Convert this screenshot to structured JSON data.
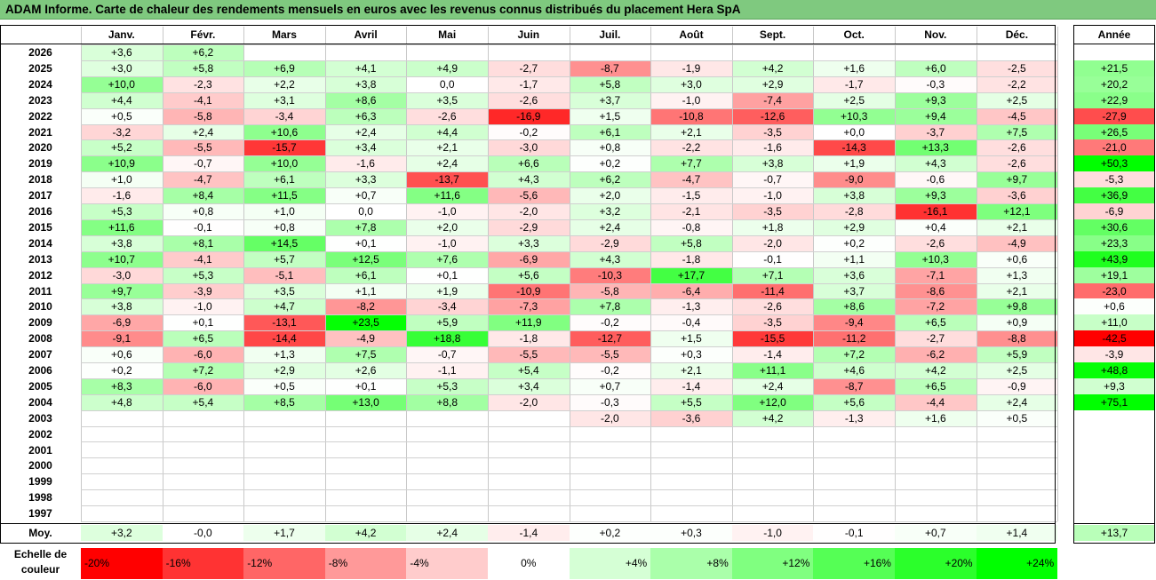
{
  "title": "ADAM Informe. Carte de chaleur des rendements mensuels en euros avec les revenus connus distribués du placement Hera SpA",
  "chart_data": {
    "type": "heatmap",
    "columns": [
      "Janv.",
      "Févr.",
      "Mars",
      "Avril",
      "Mai",
      "Juin",
      "Juil.",
      "Août",
      "Sept.",
      "Oct.",
      "Nov.",
      "Déc."
    ],
    "year_header": "Année",
    "rows": [
      {
        "year": "2026",
        "months": [
          "+3,6",
          "+6,2",
          "",
          "",
          "",
          "",
          "",
          "",
          "",
          "",
          "",
          ""
        ],
        "annual": ""
      },
      {
        "year": "2025",
        "months": [
          "+3,0",
          "+5,8",
          "+6,9",
          "+4,1",
          "+4,9",
          "-2,7",
          "-8,7",
          "-1,9",
          "+4,2",
          "+1,6",
          "+6,0",
          "-2,5"
        ],
        "annual": "+21,5"
      },
      {
        "year": "2024",
        "months": [
          "+10,0",
          "-2,3",
          "+2,2",
          "+3,8",
          "0,0",
          "-1,7",
          "+5,8",
          "+3,0",
          "+2,9",
          "-1,7",
          "-0,3",
          "-2,2"
        ],
        "annual": "+20,2"
      },
      {
        "year": "2023",
        "months": [
          "+4,4",
          "-4,1",
          "+3,1",
          "+8,6",
          "+3,5",
          "-2,6",
          "+3,7",
          "-1,0",
          "-7,4",
          "+2,5",
          "+9,3",
          "+2,5"
        ],
        "annual": "+22,9"
      },
      {
        "year": "2022",
        "months": [
          "+0,5",
          "-5,8",
          "-3,4",
          "+6,3",
          "-2,6",
          "-16,9",
          "+1,5",
          "-10,8",
          "-12,6",
          "+10,3",
          "+9,4",
          "-4,5"
        ],
        "annual": "-27,9"
      },
      {
        "year": "2021",
        "months": [
          "-3,2",
          "+2,4",
          "+10,6",
          "+2,4",
          "+4,4",
          "-0,2",
          "+6,1",
          "+2,1",
          "-3,5",
          "+0,0",
          "-3,7",
          "+7,5"
        ],
        "annual": "+26,5"
      },
      {
        "year": "2020",
        "months": [
          "+5,2",
          "-5,5",
          "-15,7",
          "+3,4",
          "+2,1",
          "-3,0",
          "+0,8",
          "-2,2",
          "-1,6",
          "-14,3",
          "+13,3",
          "-2,6"
        ],
        "annual": "-21,0"
      },
      {
        "year": "2019",
        "months": [
          "+10,9",
          "-0,7",
          "+10,0",
          "-1,6",
          "+2,4",
          "+6,6",
          "+0,2",
          "+7,7",
          "+3,8",
          "+1,9",
          "+4,3",
          "-2,6"
        ],
        "annual": "+50,3"
      },
      {
        "year": "2018",
        "months": [
          "+1,0",
          "-4,7",
          "+6,1",
          "+3,3",
          "-13,7",
          "+4,3",
          "+6,2",
          "-4,7",
          "-0,7",
          "-9,0",
          "-0,6",
          "+9,7"
        ],
        "annual": "-5,3"
      },
      {
        "year": "2017",
        "months": [
          "-1,6",
          "+8,4",
          "+11,5",
          "+0,7",
          "+11,6",
          "-5,6",
          "+2,0",
          "-1,5",
          "-1,0",
          "+3,8",
          "+9,3",
          "-3,6"
        ],
        "annual": "+36,9"
      },
      {
        "year": "2016",
        "months": [
          "+5,3",
          "+0,8",
          "+1,0",
          "0,0",
          "-1,0",
          "-2,0",
          "+3,2",
          "-2,1",
          "-3,5",
          "-2,8",
          "-16,1",
          "+12,1"
        ],
        "annual": "-6,9"
      },
      {
        "year": "2015",
        "months": [
          "+11,6",
          "-0,1",
          "+0,8",
          "+7,8",
          "+2,0",
          "-2,9",
          "+2,4",
          "-0,8",
          "+1,8",
          "+2,9",
          "+0,4",
          "+2,1"
        ],
        "annual": "+30,6"
      },
      {
        "year": "2014",
        "months": [
          "+3,8",
          "+8,1",
          "+14,5",
          "+0,1",
          "-1,0",
          "+3,3",
          "-2,9",
          "+5,8",
          "-2,0",
          "+0,2",
          "-2,6",
          "-4,9"
        ],
        "annual": "+23,3"
      },
      {
        "year": "2013",
        "months": [
          "+10,7",
          "-4,1",
          "+5,7",
          "+12,5",
          "+7,6",
          "-6,9",
          "+4,3",
          "-1,8",
          "-0,1",
          "+1,1",
          "+10,3",
          "+0,6"
        ],
        "annual": "+43,9"
      },
      {
        "year": "2012",
        "months": [
          "-3,0",
          "+5,3",
          "-5,1",
          "+6,1",
          "+0,1",
          "+5,6",
          "-10,3",
          "+17,7",
          "+7,1",
          "+3,6",
          "-7,1",
          "+1,3"
        ],
        "annual": "+19,1"
      },
      {
        "year": "2011",
        "months": [
          "+9,7",
          "-3,9",
          "+3,5",
          "+1,1",
          "+1,9",
          "-10,9",
          "-5,8",
          "-6,4",
          "-11,4",
          "+3,7",
          "-8,6",
          "+2,1"
        ],
        "annual": "-23,0"
      },
      {
        "year": "2010",
        "months": [
          "+3,8",
          "-1,0",
          "+4,7",
          "-8,2",
          "-3,4",
          "-7,3",
          "+7,8",
          "-1,3",
          "-2,6",
          "+8,6",
          "-7,2",
          "+9,8"
        ],
        "annual": "+0,6"
      },
      {
        "year": "2009",
        "months": [
          "-6,9",
          "+0,1",
          "-13,1",
          "+23,5",
          "+5,9",
          "+11,9",
          "-0,2",
          "-0,4",
          "-3,5",
          "-9,4",
          "+6,5",
          "+0,9"
        ],
        "annual": "+11,0"
      },
      {
        "year": "2008",
        "months": [
          "-9,1",
          "+6,5",
          "-14,4",
          "-4,9",
          "+18,8",
          "-1,8",
          "-12,7",
          "+1,5",
          "-15,5",
          "-11,2",
          "-2,7",
          "-8,8"
        ],
        "annual": "-42,5"
      },
      {
        "year": "2007",
        "months": [
          "+0,6",
          "-6,0",
          "+1,3",
          "+7,5",
          "-0,7",
          "-5,5",
          "-5,5",
          "+0,3",
          "-1,4",
          "+7,2",
          "-6,2",
          "+5,9"
        ],
        "annual": "-3,9"
      },
      {
        "year": "2006",
        "months": [
          "+0,2",
          "+7,2",
          "+2,9",
          "+2,6",
          "-1,1",
          "+5,4",
          "-0,2",
          "+2,1",
          "+11,1",
          "+4,6",
          "+4,2",
          "+2,5"
        ],
        "annual": "+48,8"
      },
      {
        "year": "2005",
        "months": [
          "+8,3",
          "-6,0",
          "+0,5",
          "+0,1",
          "+5,3",
          "+3,4",
          "+0,7",
          "-1,4",
          "+2,4",
          "-8,7",
          "+6,5",
          "-0,9"
        ],
        "annual": "+9,3"
      },
      {
        "year": "2004",
        "months": [
          "+4,8",
          "+5,4",
          "+8,5",
          "+13,0",
          "+8,8",
          "-2,0",
          "-0,3",
          "+5,5",
          "+12,0",
          "+5,6",
          "-4,4",
          "+2,4"
        ],
        "annual": "+75,1"
      },
      {
        "year": "2003",
        "months": [
          "",
          "",
          "",
          "",
          "",
          "",
          "-2,0",
          "-3,6",
          "+4,2",
          "-1,3",
          "+1,6",
          "+0,5"
        ],
        "annual": ""
      },
      {
        "year": "2002",
        "months": [
          "",
          "",
          "",
          "",
          "",
          "",
          "",
          "",
          "",
          "",
          "",
          ""
        ],
        "annual": ""
      },
      {
        "year": "2001",
        "months": [
          "",
          "",
          "",
          "",
          "",
          "",
          "",
          "",
          "",
          "",
          "",
          ""
        ],
        "annual": ""
      },
      {
        "year": "2000",
        "months": [
          "",
          "",
          "",
          "",
          "",
          "",
          "",
          "",
          "",
          "",
          "",
          ""
        ],
        "annual": ""
      },
      {
        "year": "1999",
        "months": [
          "",
          "",
          "",
          "",
          "",
          "",
          "",
          "",
          "",
          "",
          "",
          ""
        ],
        "annual": ""
      },
      {
        "year": "1998",
        "months": [
          "",
          "",
          "",
          "",
          "",
          "",
          "",
          "",
          "",
          "",
          "",
          ""
        ],
        "annual": ""
      },
      {
        "year": "1997",
        "months": [
          "",
          "",
          "",
          "",
          "",
          "",
          "",
          "",
          "",
          "",
          "",
          ""
        ],
        "annual": ""
      }
    ],
    "average_row": {
      "label": "Moy.",
      "months": [
        "+3,2",
        "-0,0",
        "+1,7",
        "+4,2",
        "+2,4",
        "-1,4",
        "+0,2",
        "+0,3",
        "-1,0",
        "-0,1",
        "+0,7",
        "+1,4"
      ],
      "annual": "+13,7"
    },
    "color_scale": {
      "label_line1": "Echelle de",
      "label_line2": "couleur",
      "stops": [
        "-20%",
        "-16%",
        "-12%",
        "-8%",
        "-4%",
        "0%",
        "+4%",
        "+8%",
        "+12%",
        "+16%",
        "+20%",
        "+24%"
      ],
      "values": [
        -20,
        -16,
        -12,
        -8,
        -4,
        0,
        4,
        8,
        12,
        16,
        20,
        24
      ]
    },
    "colors": {
      "negative_max": "#ff0000",
      "neutral": "#ffffff",
      "positive_max": "#00ff00",
      "title_bg": "#7fc97f"
    }
  }
}
